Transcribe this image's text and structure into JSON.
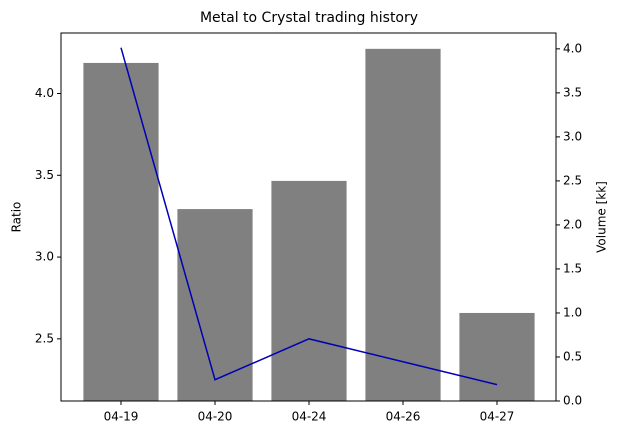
{
  "chart_data": {
    "type": "bar_line",
    "title": "Metal to Crystal trading history",
    "y_label": "Ratio",
    "y2_label": "Volume [kk]",
    "categories": [
      "04-19",
      "04-20",
      "04-24",
      "04-26",
      "04-27"
    ],
    "series": [
      {
        "type": "bar",
        "color": "#808080",
        "axis": "y2",
        "values": [
          3.84,
          2.18,
          2.5,
          4.0,
          1.0
        ]
      },
      {
        "type": "line",
        "color": "#0000b4",
        "values": [
          4.28,
          2.25,
          2.5,
          2.36,
          2.22
        ]
      }
    ],
    "ylim": [
      2.12,
      4.37
    ],
    "yticks": [
      2.5,
      {
        "value": 3,
        "label": "3.0"
      },
      3.5,
      {
        "value": 4,
        "label": "4.0"
      }
    ],
    "y2lim": [
      0,
      4.18
    ],
    "y2ticks": [
      {
        "value": 0,
        "label": "0.0"
      },
      0.5,
      {
        "value": 1,
        "label": "1.0"
      },
      1.5,
      {
        "value": 2,
        "label": "2.0"
      },
      2.5,
      {
        "value": 3,
        "label": "3.0"
      },
      3.5,
      {
        "value": 4,
        "label": "4.0"
      }
    ]
  }
}
